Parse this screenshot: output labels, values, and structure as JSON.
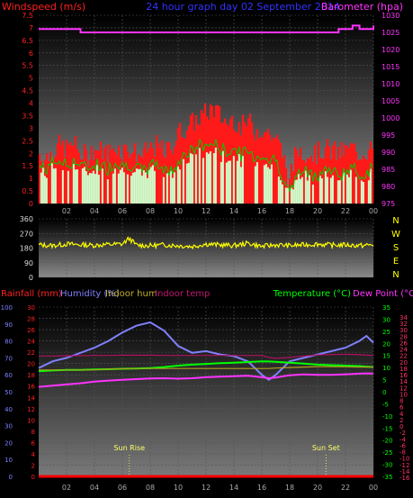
{
  "top": {
    "title_left": "Windspeed (m/s)",
    "title_center": "24 hour graph day 02 September 2014",
    "title_right": "Barometer (hpa)"
  },
  "middle": {
    "compass_letters": [
      "N",
      "W",
      "S",
      "E",
      "N"
    ]
  },
  "bottom": {
    "label_rain": "Rainfall (mm)",
    "label_humidity": "Humidity (%)",
    "label_indoor_hum": "Indoor hum",
    "label_indoor_temp": "Indoor temp",
    "label_temperature": "Temperature (°C)",
    "label_dewpoint": "Dew Point (°C)",
    "sun_rise": "Sun Rise",
    "sun_set": "Sun Set"
  },
  "colors": {
    "wind_gust": "#ff1a1a",
    "wind_avg": "#ccffcc",
    "wind_avg_line": "#00cc00",
    "barometer": "#ff33ff",
    "wind_dir": "#ffff00",
    "humidity": "#8080ff",
    "temperature": "#00ff00",
    "dewpoint": "#ff33ff",
    "indoor_temp": "#b01060",
    "indoor_hum": "#b0a020",
    "rainfall": "#ff0000",
    "title_blue": "#3333ff",
    "sun_marker": "#ffff66"
  },
  "chart_data": [
    {
      "type": "area",
      "title": "24 hour graph day 02 September 2014",
      "x_ticks": [
        "02",
        "04",
        "06",
        "08",
        "10",
        "12",
        "14",
        "16",
        "18",
        "20",
        "22",
        "00"
      ],
      "y_left_label": "Windspeed (m/s)",
      "y_left_ticks": [
        "0",
        "0.5",
        "1",
        "1.5",
        "2",
        "2.5",
        "3",
        "3.5",
        "4",
        "4.5",
        "5",
        "5.5",
        "6",
        "6.5",
        "7",
        "7.5"
      ],
      "y_left_range": [
        0,
        7.5
      ],
      "y_right_label": "Barometer (hpa)",
      "y_right_ticks": [
        "975",
        "980",
        "985",
        "990",
        "995",
        "1000",
        "1005",
        "1010",
        "1015",
        "1020",
        "1025",
        "1030"
      ],
      "y_right_range": [
        975,
        1030
      ],
      "hours": [
        0,
        0.5,
        1,
        1.5,
        2,
        2.5,
        3,
        3.5,
        4,
        4.5,
        5,
        5.5,
        6,
        6.5,
        7,
        7.5,
        8,
        8.5,
        9,
        9.5,
        10,
        10.5,
        11,
        11.5,
        12,
        12.5,
        13,
        13.5,
        14,
        14.5,
        15,
        15.5,
        16,
        16.5,
        17,
        17.5,
        18,
        18.5,
        19,
        19.5,
        20,
        20.5,
        21,
        21.5,
        22,
        22.5,
        23,
        23.5,
        24
      ],
      "series": [
        {
          "name": "Wind gust",
          "values": [
            2.0,
            1.8,
            2.1,
            2.3,
            2.2,
            2.4,
            2.0,
            1.9,
            2.2,
            2.1,
            2.0,
            2.3,
            2.1,
            2.2,
            2.0,
            1.9,
            2.2,
            2.3,
            2.0,
            2.2,
            2.8,
            3.0,
            3.2,
            3.4,
            3.6,
            3.8,
            3.5,
            3.2,
            3.4,
            3.0,
            3.3,
            2.9,
            3.0,
            2.8,
            2.6,
            2.0,
            0.8,
            2.2,
            2.1,
            2.0,
            2.0,
            2.2,
            2.1,
            2.0,
            2.1,
            2.2,
            2.0,
            2.1,
            2.2
          ]
        },
        {
          "name": "Wind average",
          "values": [
            1.3,
            1.2,
            1.4,
            1.5,
            1.3,
            1.5,
            1.3,
            1.2,
            1.4,
            1.3,
            1.2,
            1.5,
            1.3,
            1.4,
            1.2,
            1.1,
            1.3,
            1.4,
            1.2,
            1.1,
            1.5,
            1.7,
            1.8,
            2.0,
            2.0,
            2.1,
            1.9,
            1.8,
            1.9,
            1.7,
            1.8,
            1.6,
            1.7,
            1.5,
            1.5,
            1.0,
            0.3,
            1.0,
            1.1,
            1.0,
            1.0,
            1.2,
            1.1,
            1.0,
            1.1,
            1.2,
            1.0,
            1.1,
            1.2
          ]
        },
        {
          "name": "Barometer",
          "values": [
            1026,
            1026,
            1026,
            1026,
            1026,
            1026,
            1025,
            1025,
            1025,
            1025,
            1025,
            1025,
            1025,
            1025,
            1025,
            1025,
            1025,
            1025,
            1025,
            1025,
            1025,
            1025,
            1025,
            1025,
            1025,
            1025,
            1025,
            1025,
            1025,
            1025,
            1025,
            1025,
            1025,
            1025,
            1025,
            1025,
            1025,
            1025,
            1025,
            1025,
            1025,
            1025,
            1025,
            1026,
            1026,
            1027,
            1026,
            1026,
            1027
          ]
        }
      ]
    },
    {
      "type": "line",
      "y_ticks": [
        "0",
        "90",
        "180",
        "270",
        "360"
      ],
      "y_range": [
        0,
        360
      ],
      "hours": [
        0,
        1,
        2,
        3,
        4,
        5,
        6,
        6.5,
        7,
        8,
        9,
        10,
        11,
        12,
        13,
        14,
        15,
        16,
        17,
        18,
        19,
        20,
        21,
        22,
        23,
        24
      ],
      "series": [
        {
          "name": "Wind direction",
          "values": [
            200,
            195,
            205,
            200,
            198,
            202,
            205,
            240,
            198,
            195,
            200,
            195,
            190,
            205,
            200,
            195,
            210,
            190,
            200,
            195,
            200,
            205,
            198,
            200,
            195,
            200
          ]
        }
      ]
    },
    {
      "type": "line",
      "x_ticks": [
        "02",
        "04",
        "06",
        "08",
        "10",
        "12",
        "14",
        "16",
        "18",
        "20",
        "22",
        "00"
      ],
      "y_rain_ticks": [
        "0",
        "2",
        "4",
        "6",
        "8",
        "10",
        "12",
        "14",
        "16",
        "18",
        "20",
        "22",
        "24",
        "26",
        "28",
        "30"
      ],
      "y_rain_range": [
        0,
        30
      ],
      "y_hum_ticks": [
        "0",
        "10",
        "20",
        "30",
        "40",
        "50",
        "60",
        "70",
        "80",
        "90",
        "100"
      ],
      "y_hum_range": [
        0,
        100
      ],
      "y_temp_ticks": [
        "35",
        "30",
        "25",
        "20",
        "15",
        "10",
        "5",
        "0",
        "-5",
        "-10",
        "-15",
        "-20",
        "-25",
        "-30",
        "-35"
      ],
      "y_temp_range": [
        -35,
        35
      ],
      "y_dew_ticks": [
        "34",
        "32",
        "30",
        "28",
        "26",
        "24",
        "22",
        "20",
        "18",
        "16",
        "14",
        "12",
        "10",
        "8",
        "6",
        "4",
        "2",
        "0",
        "-2",
        "-4",
        "-6",
        "-8",
        "-10",
        "-12",
        "-14",
        "-16"
      ],
      "hours": [
        0,
        1,
        2,
        3,
        4,
        5,
        6,
        7,
        8,
        9,
        10,
        11,
        12,
        13,
        14,
        15,
        16,
        16.5,
        17,
        18,
        19,
        20,
        21,
        22,
        23,
        23.5,
        24
      ],
      "series": [
        {
          "name": "Humidity",
          "values": [
            64,
            68,
            70,
            73,
            76,
            80,
            85,
            89,
            91,
            86,
            77,
            73,
            74,
            72,
            71,
            68,
            60,
            57,
            60,
            68,
            70,
            72,
            74,
            76,
            80,
            83,
            79
          ]
        },
        {
          "name": "Temperature",
          "values": [
            8.5,
            8.8,
            9.0,
            9.0,
            9.2,
            9.3,
            9.5,
            9.6,
            9.8,
            10.2,
            10.8,
            11.2,
            11.5,
            11.8,
            12.0,
            12.3,
            12.6,
            12.5,
            12.4,
            12.0,
            11.6,
            11.2,
            11.0,
            10.8,
            10.6,
            10.4,
            10.2
          ]
        },
        {
          "name": "Dew Point",
          "values": [
            2.0,
            2.5,
            3.0,
            3.5,
            4.2,
            4.6,
            4.9,
            5.2,
            5.5,
            5.6,
            5.4,
            5.6,
            6.0,
            6.2,
            6.4,
            6.6,
            6.0,
            5.6,
            5.9,
            6.8,
            7.2,
            7.0,
            7.0,
            7.2,
            7.5,
            7.6,
            7.5
          ]
        },
        {
          "name": "Indoor temp",
          "values": [
            14.8,
            14.8,
            14.9,
            14.9,
            15.0,
            15.0,
            15.1,
            15.1,
            15.1,
            15.0,
            15.0,
            15.0,
            15.0,
            15.0,
            15.0,
            15.0,
            15.0,
            14.2,
            13.8,
            14.2,
            14.8,
            15.2,
            15.4,
            15.5,
            15.3,
            15.1,
            15.0
          ]
        },
        {
          "name": "Indoor hum",
          "values": [
            9.0,
            9.0,
            9.0,
            9.0,
            9.1,
            9.3,
            9.5,
            9.6,
            9.6,
            9.6,
            9.6,
            9.6,
            9.6,
            9.6,
            9.6,
            9.6,
            9.6,
            9.6,
            9.8,
            10.0,
            10.2,
            10.4,
            10.4,
            10.3,
            10.2,
            10.2,
            10.2
          ]
        },
        {
          "name": "Rainfall",
          "values": [
            0,
            0,
            0,
            0,
            0,
            0,
            0,
            0,
            0,
            0,
            0,
            0,
            0,
            0,
            0,
            0,
            0,
            0,
            0,
            0,
            0,
            0,
            0,
            0,
            0,
            0,
            0
          ]
        }
      ],
      "annotations": [
        {
          "text": "Sun Rise",
          "hour": 6.5
        },
        {
          "text": "Sun Set",
          "hour": 20.6
        }
      ]
    }
  ]
}
